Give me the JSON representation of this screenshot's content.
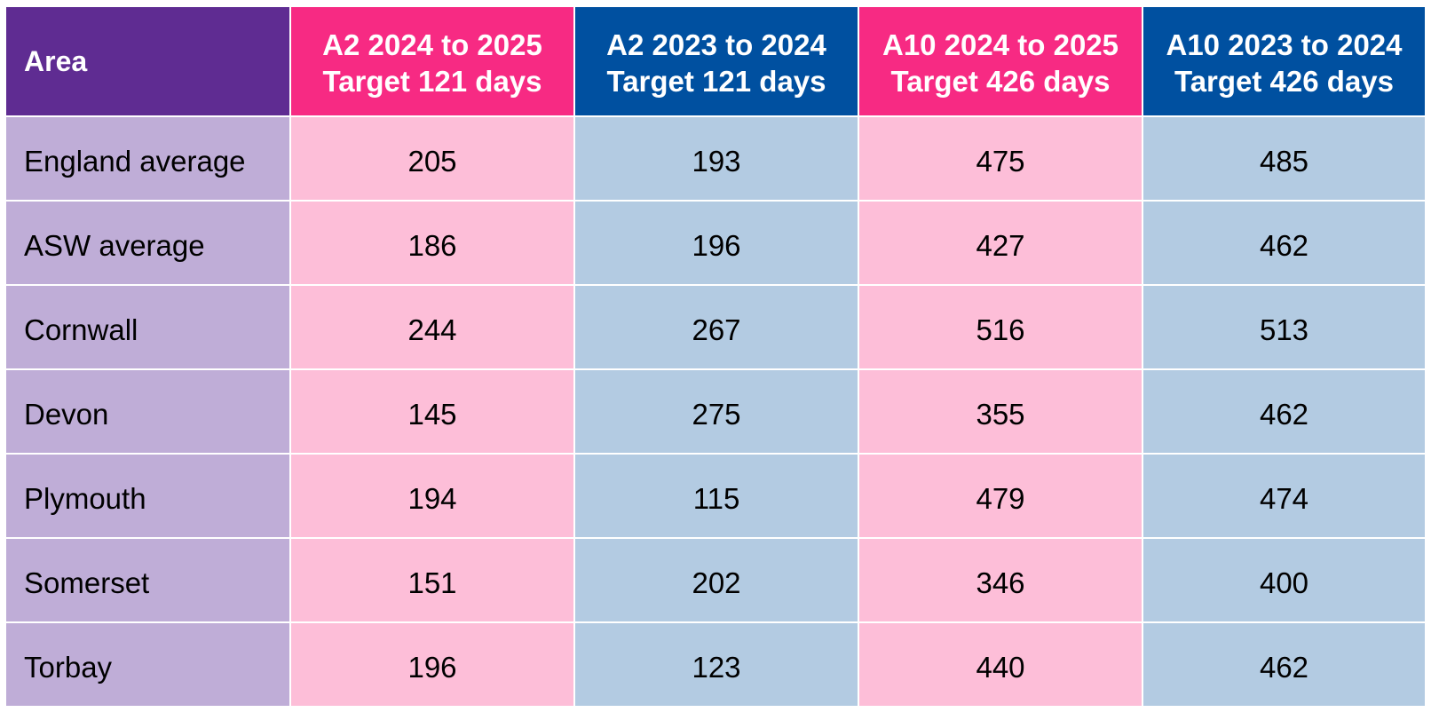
{
  "table": {
    "headers": [
      {
        "line1": "Area",
        "line2": ""
      },
      {
        "line1": "A2 2024 to 2025",
        "line2": "Target 121 days"
      },
      {
        "line1": "A2 2023 to 2024",
        "line2": "Target 121 days"
      },
      {
        "line1": "A10 2024 to 2025",
        "line2": "Target 426 days"
      },
      {
        "line1": "A10 2023 to 2024",
        "line2": "Target 426 days"
      }
    ],
    "rows": [
      [
        "England average",
        "205",
        "193",
        "475",
        "485"
      ],
      [
        "ASW average",
        "186",
        "196",
        "427",
        "462"
      ],
      [
        "Cornwall",
        "244",
        "267",
        "516",
        "513"
      ],
      [
        "Devon",
        "145",
        "275",
        "355",
        "462"
      ],
      [
        "Plymouth",
        "194",
        "115",
        "479",
        "474"
      ],
      [
        "Somerset",
        "151",
        "202",
        "346",
        "400"
      ],
      [
        "Torbay",
        "196",
        "123",
        "440",
        "462"
      ]
    ]
  },
  "colors": {
    "area_header": "#5f2c92",
    "pink_header": "#f72a83",
    "blue_header": "#0050a0",
    "area_cell": "#bfadd7",
    "pink_cell": "#fdbed8",
    "blue_cell": "#b3cbe2"
  }
}
